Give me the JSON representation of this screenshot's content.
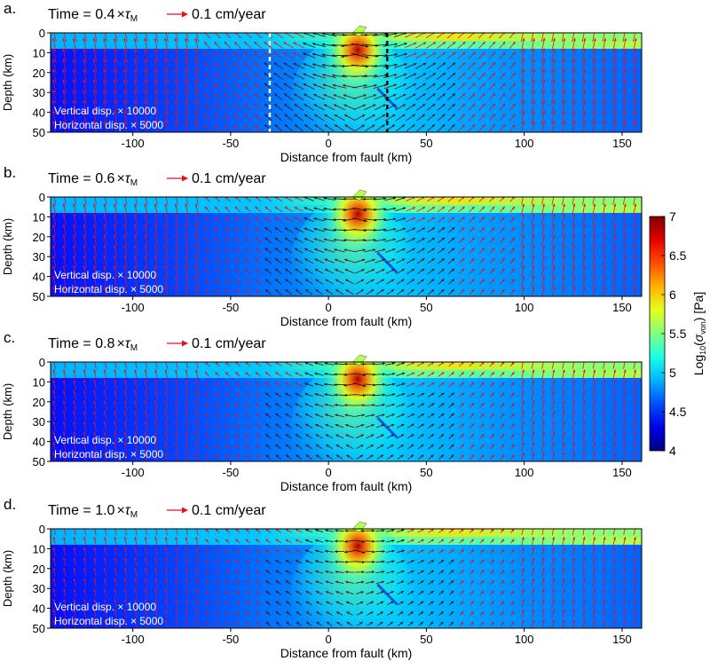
{
  "chart_data": {
    "type": "heatmap",
    "panels": [
      {
        "label": "a.",
        "time_prefix": "Time = ",
        "time_value": "0.4",
        "times": "×",
        "tau": "τ",
        "tau_sub": "M",
        "velocity_label": "0.1 cm/year",
        "vertical_disp": "Vertical disp.  × 10000",
        "horizontal_disp": "Horizontal disp. × 5000",
        "white_line_x": -30,
        "black_line_x": 30,
        "arrow_gain": 1.25
      },
      {
        "label": "b.",
        "time_prefix": "Time = ",
        "time_value": "0.6",
        "times": "×",
        "tau": "τ",
        "tau_sub": "M",
        "velocity_label": "0.1 cm/year",
        "vertical_disp": "Vertical disp.  × 10000",
        "horizontal_disp": "Horizontal disp. × 5000",
        "arrow_gain": 1.0
      },
      {
        "label": "c.",
        "time_prefix": "Time = ",
        "time_value": "0.8",
        "times": "×",
        "tau": "τ",
        "tau_sub": "M",
        "velocity_label": "0.1 cm/year",
        "vertical_disp": "Vertical disp.  × 10000",
        "horizontal_disp": "Horizontal disp. × 5000",
        "arrow_gain": 0.85
      },
      {
        "label": "d.",
        "time_prefix": "Time = ",
        "time_value": "1.0",
        "times": "×",
        "tau": "τ",
        "tau_sub": "M",
        "velocity_label": "0.1 cm/year",
        "vertical_disp": "Vertical disp.  × 10000",
        "horizontal_disp": "Horizontal disp. × 5000",
        "arrow_gain": 0.75
      }
    ],
    "xlabel": "Distance from fault (km)",
    "ylabel": "Depth (km)",
    "xlim": [
      -142,
      160
    ],
    "ylim": [
      0,
      50
    ],
    "x_ticks": [
      -100,
      -50,
      0,
      50,
      100,
      150
    ],
    "x_tick_labels": [
      "-100",
      "-50",
      "0",
      "50",
      "100",
      "150"
    ],
    "y_ticks": [
      0,
      10,
      20,
      30,
      40,
      50
    ],
    "y_tick_labels": [
      "0",
      "10",
      "20",
      "30",
      "40",
      "50"
    ],
    "upper_layer_depth_km": 8,
    "fault_x_km": 15,
    "fault_depth_km": 10,
    "colorbar": {
      "label_prefix": "Log",
      "label_sub": "10",
      "label_open": "(",
      "label_sigma": "σ",
      "label_sigma_sub": "von",
      "label_close": ") [Pa]",
      "min": 4,
      "max": 7,
      "ticks": [
        4,
        4.5,
        5,
        5.5,
        6,
        6.5,
        7
      ],
      "tick_labels": [
        "4",
        "4.5",
        "5",
        "5.5",
        "6",
        "6.5",
        "7"
      ],
      "colormap": "jet"
    },
    "arrow_color": "#e8101a",
    "grid": false
  }
}
